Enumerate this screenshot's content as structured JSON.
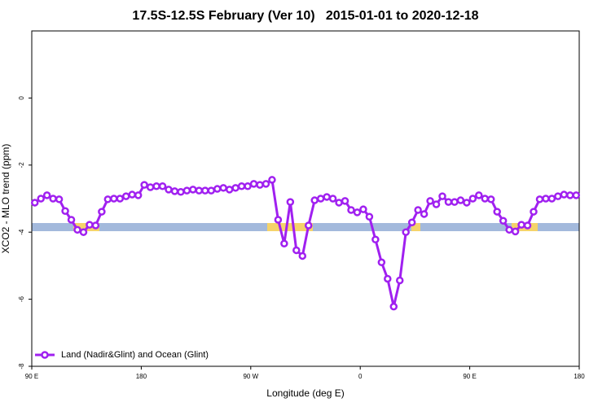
{
  "chart_data": {
    "type": "line",
    "title": "17.5S-12.5S February (Ver 10)   2015-01-01 to 2020-12-18",
    "xlabel": "Longitude (deg E)",
    "ylabel": "XCO2 - MLO trend (ppm)",
    "xlim": [
      90,
      540
    ],
    "xticks": [
      {
        "value": 90,
        "label": "90 E"
      },
      {
        "value": 180,
        "label": "180"
      },
      {
        "value": 270,
        "label": "90 W"
      },
      {
        "value": 360,
        "label": "0"
      },
      {
        "value": 450,
        "label": "90 E"
      },
      {
        "value": 540,
        "label": "180"
      }
    ],
    "ylim": [
      -8,
      2
    ],
    "yticks": [
      -8,
      -6,
      -4,
      -2,
      0
    ],
    "legend": "bottom-left",
    "x": [
      92.5,
      97.5,
      102.5,
      107.5,
      112.5,
      117.5,
      122.5,
      127.5,
      132.5,
      137.5,
      142.5,
      147.5,
      152.5,
      157.5,
      162.5,
      167.5,
      172.5,
      177.5,
      182.5,
      187.5,
      192.5,
      197.5,
      202.5,
      207.5,
      212.5,
      217.5,
      222.5,
      227.5,
      232.5,
      237.5,
      242.5,
      247.5,
      252.5,
      257.5,
      262.5,
      267.5,
      272.5,
      277.5,
      282.5,
      287.5,
      292.5,
      297.5,
      302.5,
      307.5,
      312.5,
      317.5,
      322.5,
      327.5,
      332.5,
      337.5,
      342.5,
      347.5,
      352.5,
      357.5,
      362.5,
      367.5,
      372.5,
      377.5,
      382.5,
      387.5,
      392.5,
      397.5,
      402.5,
      407.5,
      412.5,
      417.5,
      422.5,
      427.5,
      432.5,
      437.5,
      442.5,
      447.5,
      452.5,
      457.5,
      462.5,
      467.5,
      472.5,
      477.5,
      482.5,
      487.5,
      492.5,
      497.5,
      502.5,
      507.5,
      512.5,
      517.5,
      522.5,
      527.5,
      532.5,
      537.5
    ],
    "series": [
      {
        "name": "Land (Nadir&Glint) and Ocean (Glint)",
        "color": "#a020f0",
        "values": [
          -3.12,
          -3.0,
          -2.9,
          -3.0,
          -3.02,
          -3.37,
          -3.63,
          -3.93,
          -4.0,
          -3.78,
          -3.8,
          -3.39,
          -3.02,
          -3.0,
          -3.0,
          -2.93,
          -2.88,
          -2.9,
          -2.59,
          -2.66,
          -2.63,
          -2.63,
          -2.73,
          -2.78,
          -2.8,
          -2.76,
          -2.73,
          -2.76,
          -2.76,
          -2.76,
          -2.71,
          -2.68,
          -2.73,
          -2.68,
          -2.63,
          -2.63,
          -2.56,
          -2.59,
          -2.56,
          -2.44,
          -3.63,
          -4.34,
          -3.1,
          -4.54,
          -4.71,
          -3.8,
          -3.05,
          -3.0,
          -2.95,
          -3.0,
          -3.12,
          -3.07,
          -3.34,
          -3.41,
          -3.32,
          -3.54,
          -4.22,
          -4.9,
          -5.39,
          -6.22,
          -5.44,
          -4.0,
          -3.71,
          -3.34,
          -3.46,
          -3.07,
          -3.17,
          -2.93,
          -3.1,
          -3.1,
          -3.05,
          -3.12,
          -3.0,
          -2.9,
          -3.0,
          -3.02,
          -3.39,
          -3.66,
          -3.93,
          -3.98,
          -3.78,
          -3.8,
          -3.39,
          -3.02,
          -3.0,
          -3.0,
          -2.93,
          -2.88,
          -2.9,
          -2.9
        ]
      }
    ]
  }
}
